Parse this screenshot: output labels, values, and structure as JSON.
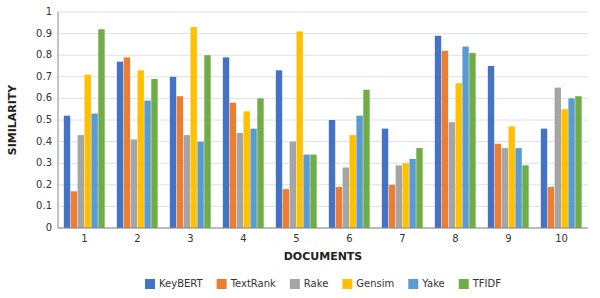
{
  "chart_data": {
    "type": "bar",
    "xlabel": "DOCUMENTS",
    "ylabel": "SIMILARITY",
    "categories": [
      1,
      2,
      3,
      4,
      5,
      6,
      7,
      8,
      9,
      10
    ],
    "series": [
      {
        "name": "KeyBERT",
        "color": "#4472C4",
        "values": [
          0.52,
          0.77,
          0.7,
          0.79,
          0.73,
          0.5,
          0.46,
          0.89,
          0.75,
          0.46
        ]
      },
      {
        "name": "TextRank",
        "color": "#ED7D31",
        "values": [
          0.17,
          0.79,
          0.61,
          0.58,
          0.18,
          0.19,
          0.2,
          0.82,
          0.39,
          0.19
        ]
      },
      {
        "name": "Rake",
        "color": "#A5A5A5",
        "values": [
          0.43,
          0.41,
          0.43,
          0.44,
          0.4,
          0.28,
          0.29,
          0.49,
          0.37,
          0.65
        ]
      },
      {
        "name": "Gensim",
        "color": "#FFC000",
        "values": [
          0.71,
          0.73,
          0.93,
          0.54,
          0.91,
          0.43,
          0.3,
          0.67,
          0.47,
          0.55
        ]
      },
      {
        "name": "Yake",
        "color": "#5B9BD5",
        "values": [
          0.53,
          0.59,
          0.4,
          0.46,
          0.34,
          0.52,
          0.32,
          0.84,
          0.37,
          0.6
        ]
      },
      {
        "name": "TFIDF",
        "color": "#70AD47",
        "values": [
          0.92,
          0.69,
          0.8,
          0.6,
          0.34,
          0.64,
          0.37,
          0.81,
          0.29,
          0.61
        ]
      }
    ],
    "ylim": [
      0,
      1
    ],
    "yticks": [
      0,
      0.1,
      0.2,
      0.3,
      0.4,
      0.5,
      0.6,
      0.7,
      0.8,
      0.9,
      1
    ],
    "grid": true,
    "legend": "bottom"
  }
}
